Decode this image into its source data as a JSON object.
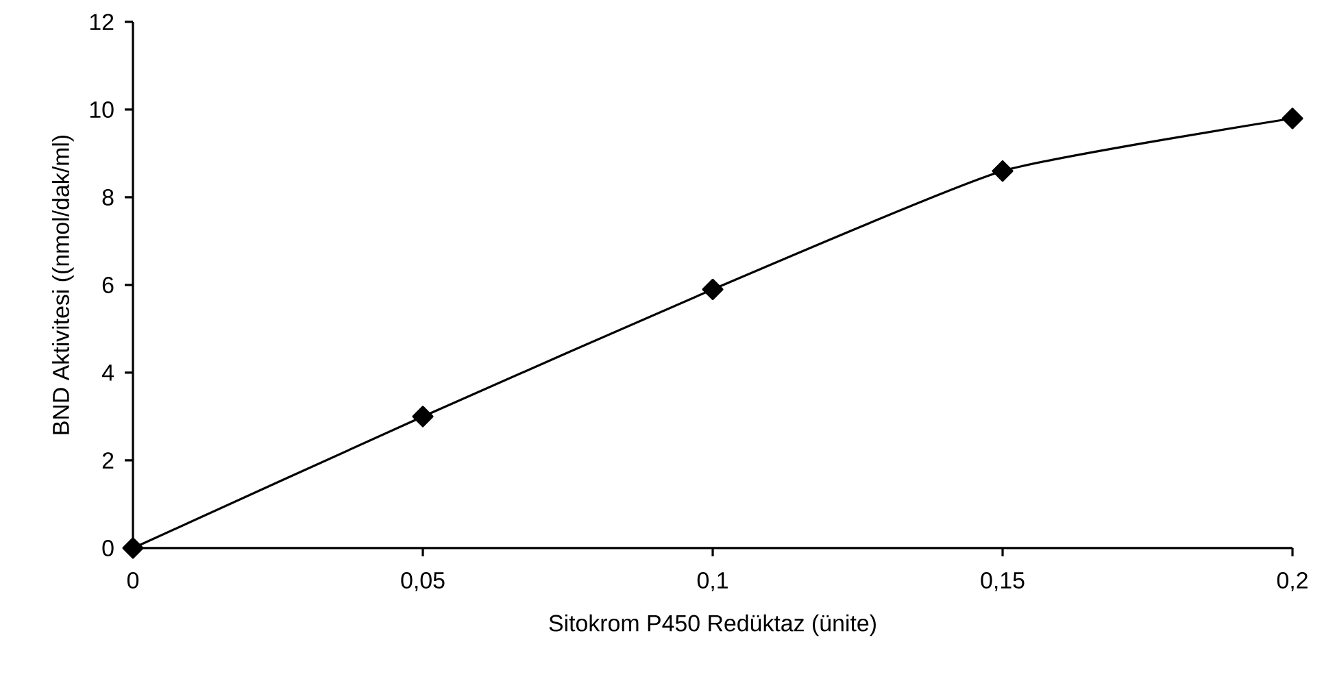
{
  "chart_data": {
    "type": "line",
    "xlabel": "Sitokrom P450 Redüktaz (ünite)",
    "ylabel": "BND Aktivitesi ((nmol/dak/ml)",
    "x": [
      0,
      0.05,
      0.1,
      0.15,
      0.2
    ],
    "series": [
      {
        "color": "#000000",
        "values": [
          0,
          3.0,
          5.9,
          8.6,
          9.8
        ]
      }
    ],
    "xlim": [
      0,
      0.2
    ],
    "ylim": [
      0,
      12
    ],
    "xticks": [
      0,
      {
        "value": 0.05,
        "label": "0,05"
      },
      {
        "value": 0.1,
        "label": "0,1"
      },
      {
        "value": 0.15,
        "label": "0,15"
      },
      {
        "value": 0.2,
        "label": "0,2"
      }
    ],
    "yticks": [
      0,
      2,
      4,
      6,
      8,
      10,
      12
    ],
    "grid": false,
    "marker": "diamond",
    "line_style": "solid"
  }
}
